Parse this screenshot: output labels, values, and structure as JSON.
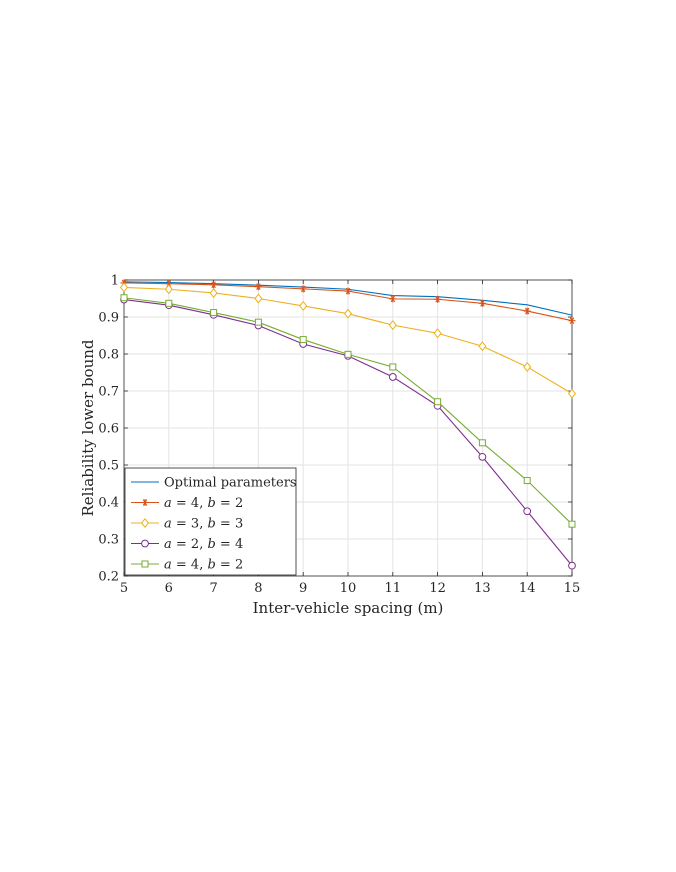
{
  "chart_data": {
    "type": "line",
    "title": "",
    "xlabel": "Inter-vehicle spacing (m)",
    "ylabel": "Reliability lower bound",
    "x": [
      5,
      6,
      7,
      8,
      9,
      10,
      11,
      12,
      13,
      14,
      15
    ],
    "xlim": [
      5,
      15
    ],
    "ylim": [
      0.2,
      1.0
    ],
    "xticks": [
      "5",
      "6",
      "7",
      "8",
      "9",
      "10",
      "11",
      "12",
      "13",
      "14",
      "15"
    ],
    "yticks": [
      "0.2",
      "0.3",
      "0.4",
      "0.5",
      "0.6",
      "0.7",
      "0.8",
      "0.9",
      "1"
    ],
    "grid": true,
    "legend_position": "bottom-left",
    "series": [
      {
        "name": "Optimal parameters",
        "color": "#0072BD",
        "marker": "none",
        "values": [
          0.995,
          0.993,
          0.99,
          0.986,
          0.981,
          0.975,
          0.958,
          0.955,
          0.945,
          0.933,
          0.905
        ]
      },
      {
        "name": "a = 4, b = 2",
        "color": "#D95319",
        "marker": "asterisk",
        "values": [
          0.992,
          0.99,
          0.987,
          0.982,
          0.976,
          0.97,
          0.949,
          0.948,
          0.937,
          0.916,
          0.89
        ]
      },
      {
        "name": "a = 3, b = 3",
        "color": "#EDB120",
        "marker": "diamond",
        "values": [
          0.98,
          0.975,
          0.965,
          0.95,
          0.93,
          0.909,
          0.878,
          0.856,
          0.821,
          0.765,
          0.693
        ]
      },
      {
        "name": "a = 2, b = 4",
        "color": "#7E2F8E",
        "marker": "circle",
        "values": [
          0.947,
          0.932,
          0.906,
          0.877,
          0.827,
          0.795,
          0.738,
          0.66,
          0.522,
          0.375,
          0.228
        ]
      },
      {
        "name": "a = 4, b = 2",
        "color": "#77AC30",
        "marker": "square",
        "values": [
          0.952,
          0.937,
          0.912,
          0.886,
          0.839,
          0.799,
          0.765,
          0.671,
          0.56,
          0.458,
          0.34
        ]
      }
    ]
  }
}
